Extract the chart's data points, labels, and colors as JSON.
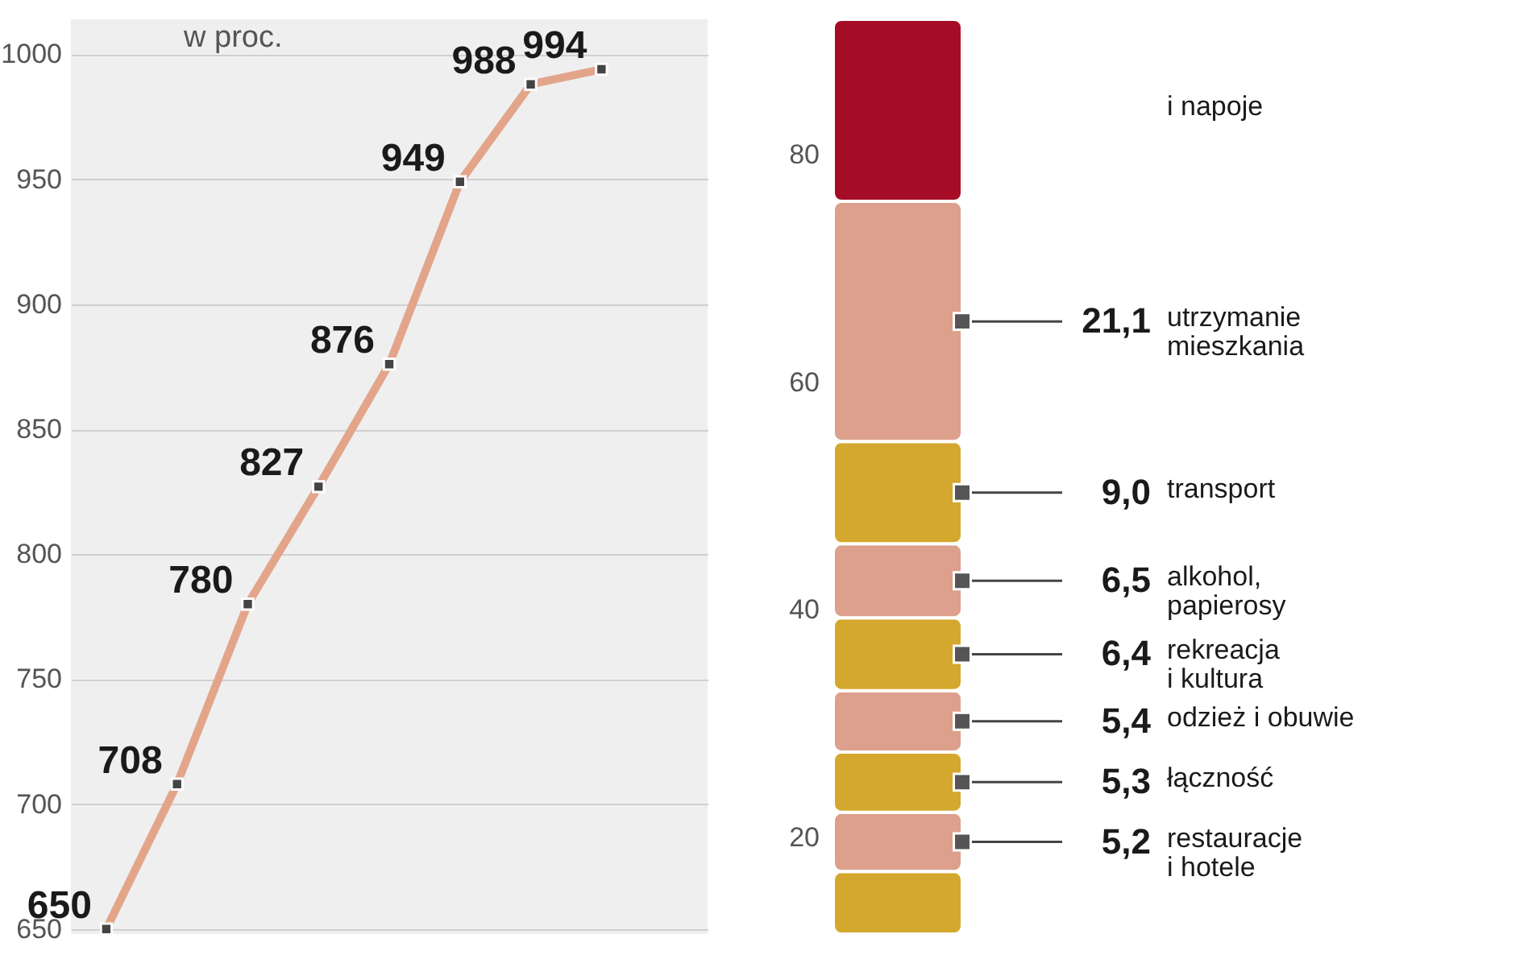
{
  "chart_data": [
    {
      "type": "line",
      "categories": [
        null,
        null,
        null,
        null,
        null,
        null,
        null,
        null
      ],
      "series": [
        {
          "color": "#e3a58a",
          "values": [
            650,
            708,
            780,
            827,
            876,
            949,
            988,
            994
          ]
        }
      ],
      "ylim": [
        648,
        1014
      ],
      "yticks": [
        650,
        700,
        750,
        800,
        850,
        900,
        950,
        1000
      ],
      "grid": "y",
      "marker": "square",
      "data_labels": true,
      "tick_labels": "y",
      "annotations": [
        "w proc."
      ]
    },
    {
      "type": "bar",
      "categories": [
        null
      ],
      "ylim": [
        11.5,
        91.9
      ],
      "yticks": [
        20,
        40,
        60,
        80
      ],
      "tick_labels": "y",
      "series": [
        {
          "color": "#d4a82e",
          "values": [
            5.5
          ],
          "base": [
            11.5
          ],
          "value_labels": [
            null
          ]
        },
        {
          "name": "restauracje\ni hotele",
          "color": "#dca08c",
          "values": [
            5.2
          ],
          "base": [
            17.0
          ],
          "value_labels": [
            "5,2"
          ]
        },
        {
          "name": "łączność",
          "color": "#d4a82e",
          "values": [
            5.3
          ],
          "base": [
            22.2
          ],
          "value_labels": [
            "5,3"
          ]
        },
        {
          "name": "odzież i obuwie",
          "color": "#dca08c",
          "values": [
            5.4
          ],
          "base": [
            27.5
          ],
          "value_labels": [
            "5,4"
          ]
        },
        {
          "name": "rekreacja\ni kultura",
          "color": "#d4a82e",
          "values": [
            6.4
          ],
          "base": [
            32.9
          ],
          "value_labels": [
            "6,4"
          ]
        },
        {
          "name": "alkohol,\npapierosy",
          "color": "#dca08c",
          "values": [
            6.5
          ],
          "base": [
            39.3
          ],
          "value_labels": [
            "6,5"
          ]
        },
        {
          "name": "transport",
          "color": "#d4a82e",
          "values": [
            9.0
          ],
          "base": [
            45.8
          ],
          "value_labels": [
            "9,0"
          ]
        },
        {
          "name": "utrzymanie\nmieszkania",
          "color": "#dca08c",
          "values": [
            21.1
          ],
          "base": [
            54.8
          ],
          "value_labels": [
            "21,1"
          ]
        },
        {
          "name": "i napoje",
          "color": "#a50d27",
          "values": [
            16.0
          ],
          "base": [
            75.9
          ],
          "value_labels": [
            null
          ]
        }
      ]
    }
  ]
}
